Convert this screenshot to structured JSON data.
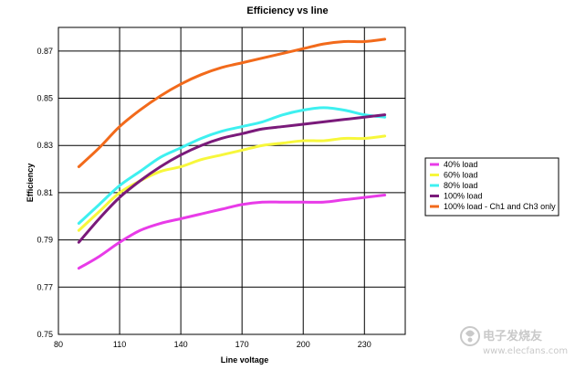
{
  "chart_data": {
    "type": "line",
    "title": "Efficiency vs line",
    "xlabel": "Line voltage",
    "ylabel": "Efficiency",
    "xlim": [
      80,
      250
    ],
    "ylim": [
      0.75,
      0.88
    ],
    "x_ticks": [
      80,
      110,
      140,
      170,
      200,
      230
    ],
    "y_ticks": [
      0.75,
      0.77,
      0.79,
      0.81,
      0.83,
      0.85,
      0.87
    ],
    "y_tick_labels": [
      "0.75",
      "0.77",
      "0.79",
      "0.81",
      "0.83",
      "0.85",
      "0.87"
    ],
    "grid": true,
    "legend_position": "right",
    "series": [
      {
        "name": "40% load",
        "color": "#e83be8",
        "x": [
          90,
          100,
          110,
          120,
          130,
          140,
          150,
          160,
          170,
          180,
          190,
          200,
          210,
          220,
          230,
          240
        ],
        "y": [
          0.778,
          0.783,
          0.789,
          0.794,
          0.797,
          0.799,
          0.801,
          0.803,
          0.805,
          0.806,
          0.806,
          0.806,
          0.806,
          0.807,
          0.808,
          0.809
        ]
      },
      {
        "name": "60% load",
        "color": "#f7f73b",
        "x": [
          90,
          100,
          110,
          120,
          130,
          140,
          150,
          160,
          170,
          180,
          190,
          200,
          210,
          220,
          230,
          240
        ],
        "y": [
          0.794,
          0.802,
          0.81,
          0.815,
          0.819,
          0.821,
          0.824,
          0.826,
          0.828,
          0.83,
          0.831,
          0.832,
          0.832,
          0.833,
          0.833,
          0.834
        ]
      },
      {
        "name": "80% load",
        "color": "#3ef0f0",
        "x": [
          90,
          100,
          110,
          120,
          130,
          140,
          150,
          160,
          170,
          180,
          190,
          200,
          210,
          220,
          230,
          240
        ],
        "y": [
          0.797,
          0.805,
          0.813,
          0.819,
          0.825,
          0.829,
          0.833,
          0.836,
          0.838,
          0.84,
          0.843,
          0.845,
          0.846,
          0.845,
          0.843,
          0.842
        ]
      },
      {
        "name": "100% load",
        "color": "#7a1a7a",
        "x": [
          90,
          100,
          110,
          120,
          130,
          140,
          150,
          160,
          170,
          180,
          190,
          200,
          210,
          220,
          230,
          240
        ],
        "y": [
          0.789,
          0.799,
          0.808,
          0.815,
          0.821,
          0.826,
          0.83,
          0.833,
          0.835,
          0.837,
          0.838,
          0.839,
          0.84,
          0.841,
          0.842,
          0.843
        ]
      },
      {
        "name": "100% load - Ch1 and Ch3 only",
        "color": "#f26a1b",
        "x": [
          90,
          100,
          110,
          120,
          130,
          140,
          150,
          160,
          170,
          180,
          190,
          200,
          210,
          220,
          230,
          240
        ],
        "y": [
          0.821,
          0.829,
          0.838,
          0.845,
          0.851,
          0.856,
          0.86,
          0.863,
          0.865,
          0.867,
          0.869,
          0.871,
          0.873,
          0.874,
          0.874,
          0.875
        ]
      }
    ]
  },
  "watermark": {
    "line1": "电子发烧友",
    "line2": "www.elecfans.com",
    "icon": "elecfans-logo-icon"
  }
}
